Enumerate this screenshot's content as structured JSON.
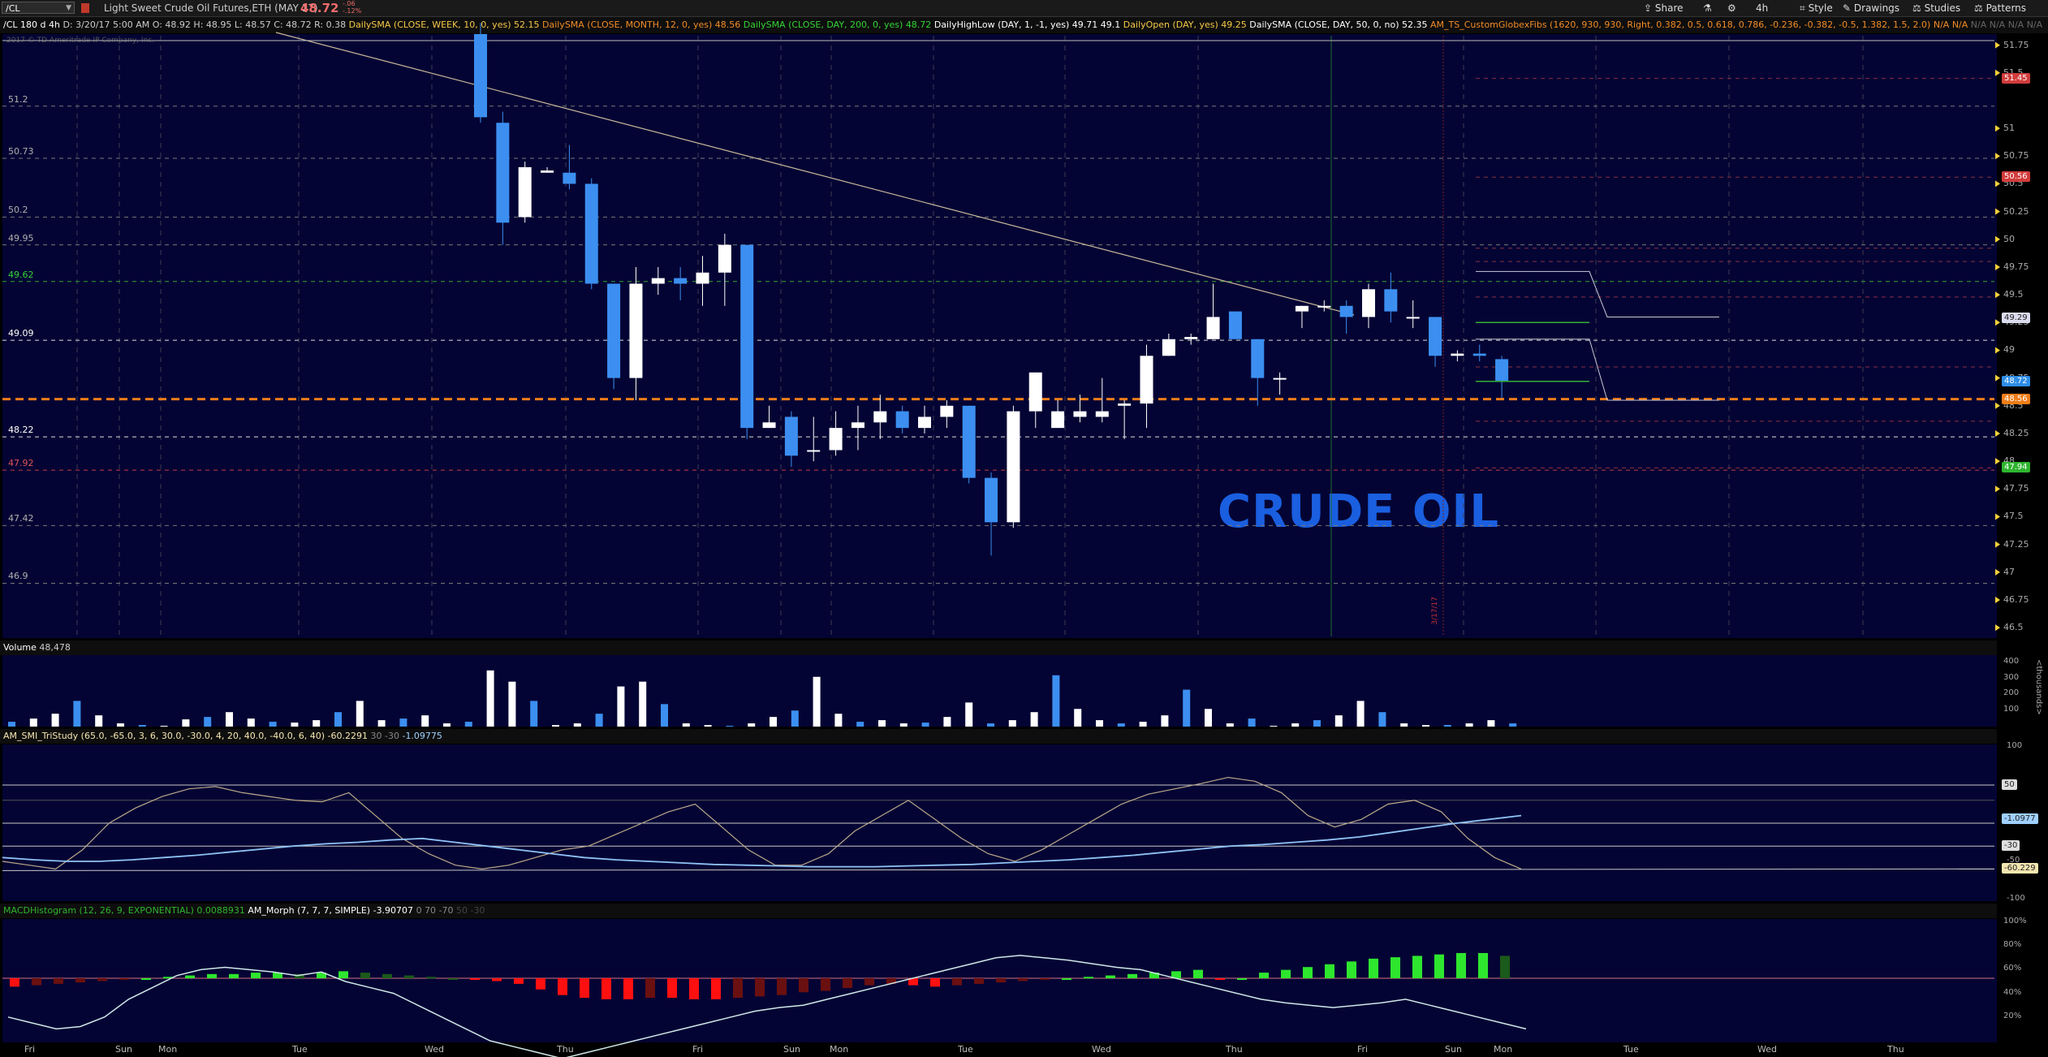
{
  "toolbar": {
    "symbol": "/CL",
    "description": "Light Sweet Crude Oil Futures,ETH (MAY 17)",
    "last_price": "48.72",
    "change_top": "-.06",
    "change_bottom": "-.12%",
    "share_label": "Share",
    "timeframe_label": "4h",
    "style_label": "Style",
    "drawings_label": "Drawings",
    "studies_label": "Studies",
    "patterns_label": "Patterns"
  },
  "studies": {
    "chart_id": "/CL 180 d 4h",
    "bar_info": "D: 3/20/17 5:00 AM",
    "open": "O: 48.92",
    "high": "H: 48.95",
    "low": "L: 48.57",
    "close": "C: 48.72",
    "range": "R: 0.38",
    "sma_week_label": "DailySMA (CLOSE, WEEK, 10, 0, yes)",
    "sma_week_value": "52.15",
    "sma_month_label": "DailySMA (CLOSE, MONTH, 12, 0, yes)",
    "sma_month_value": "48.56",
    "sma_day200_label": "DailySMA (CLOSE, DAY, 200, 0, yes)",
    "sma_day200_value": "48.72",
    "daily_hl_label": "DailyHighLow (DAY, 1, -1, yes)",
    "daily_high_value": "49.71",
    "daily_low_value": "49.1",
    "daily_open_label": "DailyOpen (DAY, yes)",
    "daily_open_value": "49.25",
    "sma_day50_label": "DailySMA (CLOSE, DAY, 50, 0, no)",
    "sma_day50_value": "52.35",
    "fibs_label": "AM_TS_CustomGlobexFibs (1620, 930, 930, Right, 0.382, 0.5, 0.618, 0.786, -0.236, -0.382, -0.5, 1.382, 1.5, 2.0)",
    "na_values": [
      "N/A",
      "N/A",
      "N/A",
      "N/A",
      "N/A",
      "N/A"
    ]
  },
  "price_panel": {
    "copyright": "2017 © TD Ameritrade IP Company, Inc.",
    "watermark": "CRUDE OIL",
    "left_levels": [
      {
        "text": "51.2",
        "color": "#b0b0b0"
      },
      {
        "text": "50.73",
        "color": "#b0b0b0"
      },
      {
        "text": "50.2",
        "color": "#b0b0b0"
      },
      {
        "text": "49.95",
        "color": "#b0b0b0"
      },
      {
        "text": "49.62",
        "color": "#35d435"
      },
      {
        "text": "49.09",
        "color": "#ffffff"
      },
      {
        "text": "48.22",
        "color": "#ffffff"
      },
      {
        "text": "47.92",
        "color": "#e05555"
      },
      {
        "text": "47.42",
        "color": "#b0b0b0"
      },
      {
        "text": "46.9",
        "color": "#b0b0b0"
      }
    ],
    "axis_ticks": [
      "51.75",
      "51.5",
      "51",
      "50.75",
      "50.5",
      "50.25",
      "50",
      "49.75",
      "49.5",
      "49.25",
      "49",
      "48.75",
      "48.5",
      "48.25",
      "48",
      "47.75",
      "47.5",
      "47.25",
      "47",
      "46.75",
      "46.5"
    ],
    "tags": [
      {
        "text": "51.45",
        "bg": "#d23c3c",
        "fg": "#fff"
      },
      {
        "text": "50.56",
        "bg": "#d23c3c",
        "fg": "#fff"
      },
      {
        "text": "49.29",
        "bg": "#dcdcf0",
        "fg": "#222"
      },
      {
        "text": "48.72",
        "bg": "#2e8ee8",
        "fg": "#fff"
      },
      {
        "text": "48.56",
        "bg": "#f07d19",
        "fg": "#fff"
      },
      {
        "text": "47.94",
        "bg": "#2fb52f",
        "fg": "#fff"
      }
    ],
    "vline_labels": [
      "3/17/17"
    ]
  },
  "volume_panel": {
    "label": "Volume",
    "value": "48,478",
    "axis_ticks": [
      "400",
      "300",
      "200",
      "100"
    ],
    "unit": "<thousands>"
  },
  "smi_panel": {
    "label": "AM_SMI_TriStudy (65.0, -65.0, 3, 6, 30.0, -30.0, 4, 20, 40.0, -40.0, 6, 40)",
    "value": "-60.2291",
    "v2": "30",
    "v3": "-30",
    "v4": "-1.09775",
    "axis_ticks": [
      "100",
      "50",
      "0",
      "-50",
      "-100"
    ],
    "tags": [
      {
        "text": "50",
        "bg": "#dddddd",
        "fg": "#222"
      },
      {
        "text": "-1.0977",
        "bg": "#9fd0ff",
        "fg": "#222"
      },
      {
        "text": "-30",
        "bg": "#dddddd",
        "fg": "#222"
      },
      {
        "text": "-60.229",
        "bg": "#f4e6b0",
        "fg": "#222"
      }
    ]
  },
  "macd_panel": {
    "label": "MACDHistogram (12, 26, 9, EXPONENTIAL)",
    "value": "0.0088931",
    "morph_label": "AM_Morph (7, 7, 7, SIMPLE)",
    "morph_value": "-3.90707",
    "v2": "0",
    "v3": "70",
    "v4": "-70",
    "v5": "50",
    "v6": "-30",
    "axis_ticks": [
      "100%",
      "80%",
      "60%",
      "40%",
      "20%"
    ]
  },
  "x_axis": [
    "Fri",
    "Sun",
    "Mon",
    "Tue",
    "Wed",
    "Thu",
    "Fri",
    "Sun",
    "Mon",
    "Tue",
    "Wed",
    "Thu",
    "Fri",
    "Sun",
    "Mon",
    "Tue",
    "Wed",
    "Thu"
  ],
  "chart_data": {
    "type": "candlestick",
    "timeframe": "4h",
    "candles": [
      {
        "o": 51.85,
        "h": 51.95,
        "l": 51.05,
        "c": 51.1
      },
      {
        "o": 51.05,
        "h": 51.15,
        "l": 49.95,
        "c": 50.15
      },
      {
        "o": 50.2,
        "h": 50.7,
        "l": 50.15,
        "c": 50.65
      },
      {
        "o": 50.6,
        "h": 50.65,
        "l": 50.6,
        "c": 50.62
      },
      {
        "o": 50.6,
        "h": 50.85,
        "l": 50.45,
        "c": 50.5
      },
      {
        "o": 50.5,
        "h": 50.55,
        "l": 49.55,
        "c": 49.6
      },
      {
        "o": 49.6,
        "h": 49.6,
        "l": 48.65,
        "c": 48.75
      },
      {
        "o": 48.75,
        "h": 49.75,
        "l": 48.55,
        "c": 49.6
      },
      {
        "o": 49.6,
        "h": 49.75,
        "l": 49.5,
        "c": 49.65
      },
      {
        "o": 49.65,
        "h": 49.75,
        "l": 49.45,
        "c": 49.6
      },
      {
        "o": 49.6,
        "h": 49.85,
        "l": 49.4,
        "c": 49.7
      },
      {
        "o": 49.7,
        "h": 50.05,
        "l": 49.4,
        "c": 49.95
      },
      {
        "o": 49.95,
        "h": 49.95,
        "l": 48.2,
        "c": 48.3
      },
      {
        "o": 48.3,
        "h": 48.5,
        "l": 48.3,
        "c": 48.35
      },
      {
        "o": 48.4,
        "h": 48.45,
        "l": 47.95,
        "c": 48.05
      },
      {
        "o": 48.1,
        "h": 48.4,
        "l": 48.0,
        "c": 48.1
      },
      {
        "o": 48.1,
        "h": 48.45,
        "l": 48.05,
        "c": 48.3
      },
      {
        "o": 48.3,
        "h": 48.5,
        "l": 48.1,
        "c": 48.35
      },
      {
        "o": 48.35,
        "h": 48.6,
        "l": 48.2,
        "c": 48.45
      },
      {
        "o": 48.45,
        "h": 48.5,
        "l": 48.25,
        "c": 48.3
      },
      {
        "o": 48.3,
        "h": 48.5,
        "l": 48.25,
        "c": 48.4
      },
      {
        "o": 48.4,
        "h": 48.55,
        "l": 48.3,
        "c": 48.5
      },
      {
        "o": 48.5,
        "h": 48.5,
        "l": 47.8,
        "c": 47.85
      },
      {
        "o": 47.85,
        "h": 47.9,
        "l": 47.15,
        "c": 47.45
      },
      {
        "o": 47.45,
        "h": 48.5,
        "l": 47.4,
        "c": 48.45
      },
      {
        "o": 48.45,
        "h": 48.8,
        "l": 48.3,
        "c": 48.8
      },
      {
        "o": 48.3,
        "h": 48.55,
        "l": 48.3,
        "c": 48.45
      },
      {
        "o": 48.4,
        "h": 48.6,
        "l": 48.35,
        "c": 48.45
      },
      {
        "o": 48.4,
        "h": 48.75,
        "l": 48.35,
        "c": 48.45
      },
      {
        "o": 48.5,
        "h": 48.55,
        "l": 48.2,
        "c": 48.52
      },
      {
        "o": 48.52,
        "h": 49.05,
        "l": 48.3,
        "c": 48.95
      },
      {
        "o": 48.95,
        "h": 49.15,
        "l": 48.95,
        "c": 49.1
      },
      {
        "o": 49.1,
        "h": 49.15,
        "l": 49.05,
        "c": 49.12
      },
      {
        "o": 49.1,
        "h": 49.6,
        "l": 49.1,
        "c": 49.3
      },
      {
        "o": 49.35,
        "h": 49.35,
        "l": 49.1,
        "c": 49.1
      },
      {
        "o": 49.1,
        "h": 49.1,
        "l": 48.5,
        "c": 48.75
      },
      {
        "o": 48.75,
        "h": 48.8,
        "l": 48.6,
        "c": 48.75
      },
      {
        "o": 49.35,
        "h": 49.4,
        "l": 49.2,
        "c": 49.4
      },
      {
        "o": 49.4,
        "h": 49.45,
        "l": 49.35,
        "c": 49.4
      },
      {
        "o": 49.4,
        "h": 49.45,
        "l": 49.15,
        "c": 49.3
      },
      {
        "o": 49.3,
        "h": 49.6,
        "l": 49.2,
        "c": 49.55
      },
      {
        "o": 49.55,
        "h": 49.7,
        "l": 49.25,
        "c": 49.35
      },
      {
        "o": 49.3,
        "h": 49.45,
        "l": 49.2,
        "c": 49.3
      },
      {
        "o": 49.3,
        "h": 49.3,
        "l": 48.85,
        "c": 48.95
      },
      {
        "o": 48.95,
        "h": 49.0,
        "l": 48.9,
        "c": 48.97
      },
      {
        "o": 48.97,
        "h": 49.05,
        "l": 48.9,
        "c": 48.95
      },
      {
        "o": 48.92,
        "h": 48.95,
        "l": 48.57,
        "c": 48.72
      }
    ]
  }
}
